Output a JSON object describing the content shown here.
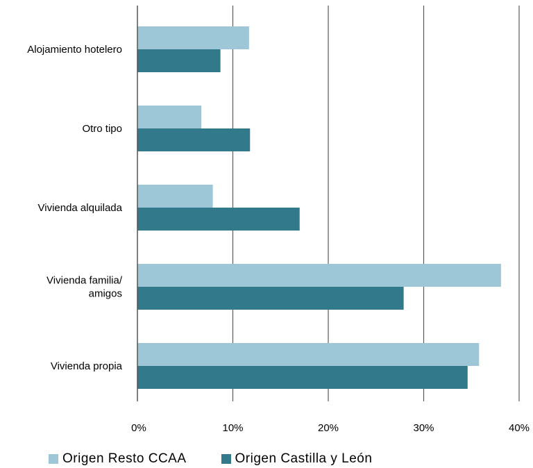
{
  "chart_data": {
    "type": "bar",
    "orientation": "horizontal",
    "categories": [
      "Alojamiento hotelero",
      "Otro tipo",
      "Vivienda alquilada",
      "Vivienda familia/ amigos",
      "Vivienda propia"
    ],
    "category_lines": [
      [
        "Alojamiento hotelero"
      ],
      [
        "Otro tipo"
      ],
      [
        "Vivienda alquilada"
      ],
      [
        "Vivienda familia/",
        "amigos"
      ],
      [
        "Vivienda propia"
      ]
    ],
    "series": [
      {
        "name": "Origen Resto CCAA",
        "color": "#9dc6d6",
        "values": [
          11.7,
          6.7,
          7.9,
          38.1,
          35.8
        ]
      },
      {
        "name": "Origen Castilla y León",
        "color": "#31798b",
        "values": [
          8.7,
          11.8,
          17.0,
          27.9,
          34.6
        ]
      }
    ],
    "xlim": [
      0,
      40
    ],
    "xticks": [
      0,
      10,
      20,
      30,
      40
    ],
    "xtick_labels": [
      "0%",
      "10%",
      "20%",
      "30%",
      "40%"
    ],
    "grid": "vertical",
    "legend_position": "bottom"
  }
}
